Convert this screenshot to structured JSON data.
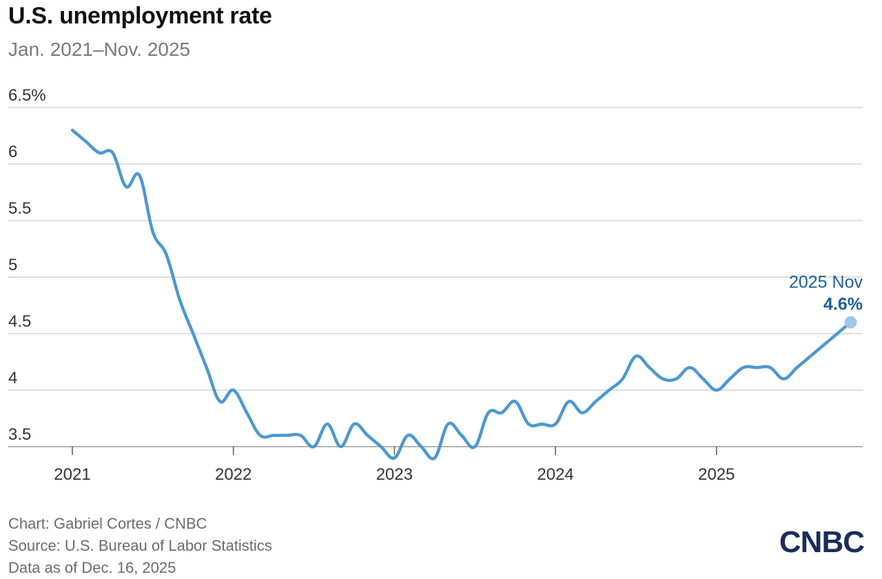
{
  "header": {
    "title": "U.S. unemployment rate",
    "subtitle": "Jan. 2021–Nov. 2025"
  },
  "chart_data": {
    "type": "line",
    "title": "U.S. unemployment rate",
    "subtitle": "Jan. 2021–Nov. 2025",
    "xlabel": "",
    "ylabel": "",
    "ylim": [
      3.5,
      6.5
    ],
    "y_ticks": [
      {
        "value": 6.5,
        "label": "6.5%"
      },
      {
        "value": 6,
        "label": "6"
      },
      {
        "value": 5.5,
        "label": "5.5"
      },
      {
        "value": 5,
        "label": "5"
      },
      {
        "value": 4.5,
        "label": "4.5"
      },
      {
        "value": 4,
        "label": "4"
      },
      {
        "value": 3.5,
        "label": "3.5"
      }
    ],
    "x_ticks": [
      "2021",
      "2022",
      "2023",
      "2024",
      "2025"
    ],
    "grid": "horizontal",
    "series": [
      {
        "color": "#4d98cf",
        "x": [
          "2021-01",
          "2021-02",
          "2021-03",
          "2021-04",
          "2021-05",
          "2021-06",
          "2021-07",
          "2021-08",
          "2021-09",
          "2021-10",
          "2021-11",
          "2021-12",
          "2022-01",
          "2022-02",
          "2022-03",
          "2022-04",
          "2022-05",
          "2022-06",
          "2022-07",
          "2022-08",
          "2022-09",
          "2022-10",
          "2022-11",
          "2022-12",
          "2023-01",
          "2023-02",
          "2023-03",
          "2023-04",
          "2023-05",
          "2023-06",
          "2023-07",
          "2023-08",
          "2023-09",
          "2023-10",
          "2023-11",
          "2023-12",
          "2024-01",
          "2024-02",
          "2024-03",
          "2024-04",
          "2024-05",
          "2024-06",
          "2024-07",
          "2024-08",
          "2024-09",
          "2024-10",
          "2024-11",
          "2024-12",
          "2025-01",
          "2025-02",
          "2025-03",
          "2025-04",
          "2025-05",
          "2025-06",
          "2025-07",
          "2025-08",
          "2025-09",
          "2025-11"
        ],
        "values": [
          6.3,
          6.2,
          6.1,
          6.1,
          5.8,
          5.9,
          5.4,
          5.2,
          4.8,
          4.5,
          4.2,
          3.9,
          4.0,
          3.8,
          3.6,
          3.6,
          3.6,
          3.6,
          3.5,
          3.7,
          3.5,
          3.7,
          3.6,
          3.5,
          3.4,
          3.6,
          3.5,
          3.4,
          3.7,
          3.6,
          3.5,
          3.8,
          3.8,
          3.9,
          3.7,
          3.7,
          3.7,
          3.9,
          3.8,
          3.9,
          4.0,
          4.1,
          4.3,
          4.2,
          4.1,
          4.1,
          4.2,
          4.1,
          4.0,
          4.1,
          4.2,
          4.2,
          4.2,
          4.1,
          4.2,
          4.3,
          4.4,
          4.6
        ]
      }
    ],
    "annotation": {
      "x": "2025-11",
      "value": 4.6,
      "label_date": "2025 Nov",
      "label_value": "4.6%",
      "color": "#1f5f91"
    }
  },
  "footer": {
    "credit": "Chart: Gabriel Cortes / CNBC",
    "source": "Source: U.S. Bureau of Labor Statistics",
    "date": "Data as of Dec. 16, 2025"
  },
  "logo": {
    "text": "CNBC",
    "color": "#1a2d5a"
  }
}
